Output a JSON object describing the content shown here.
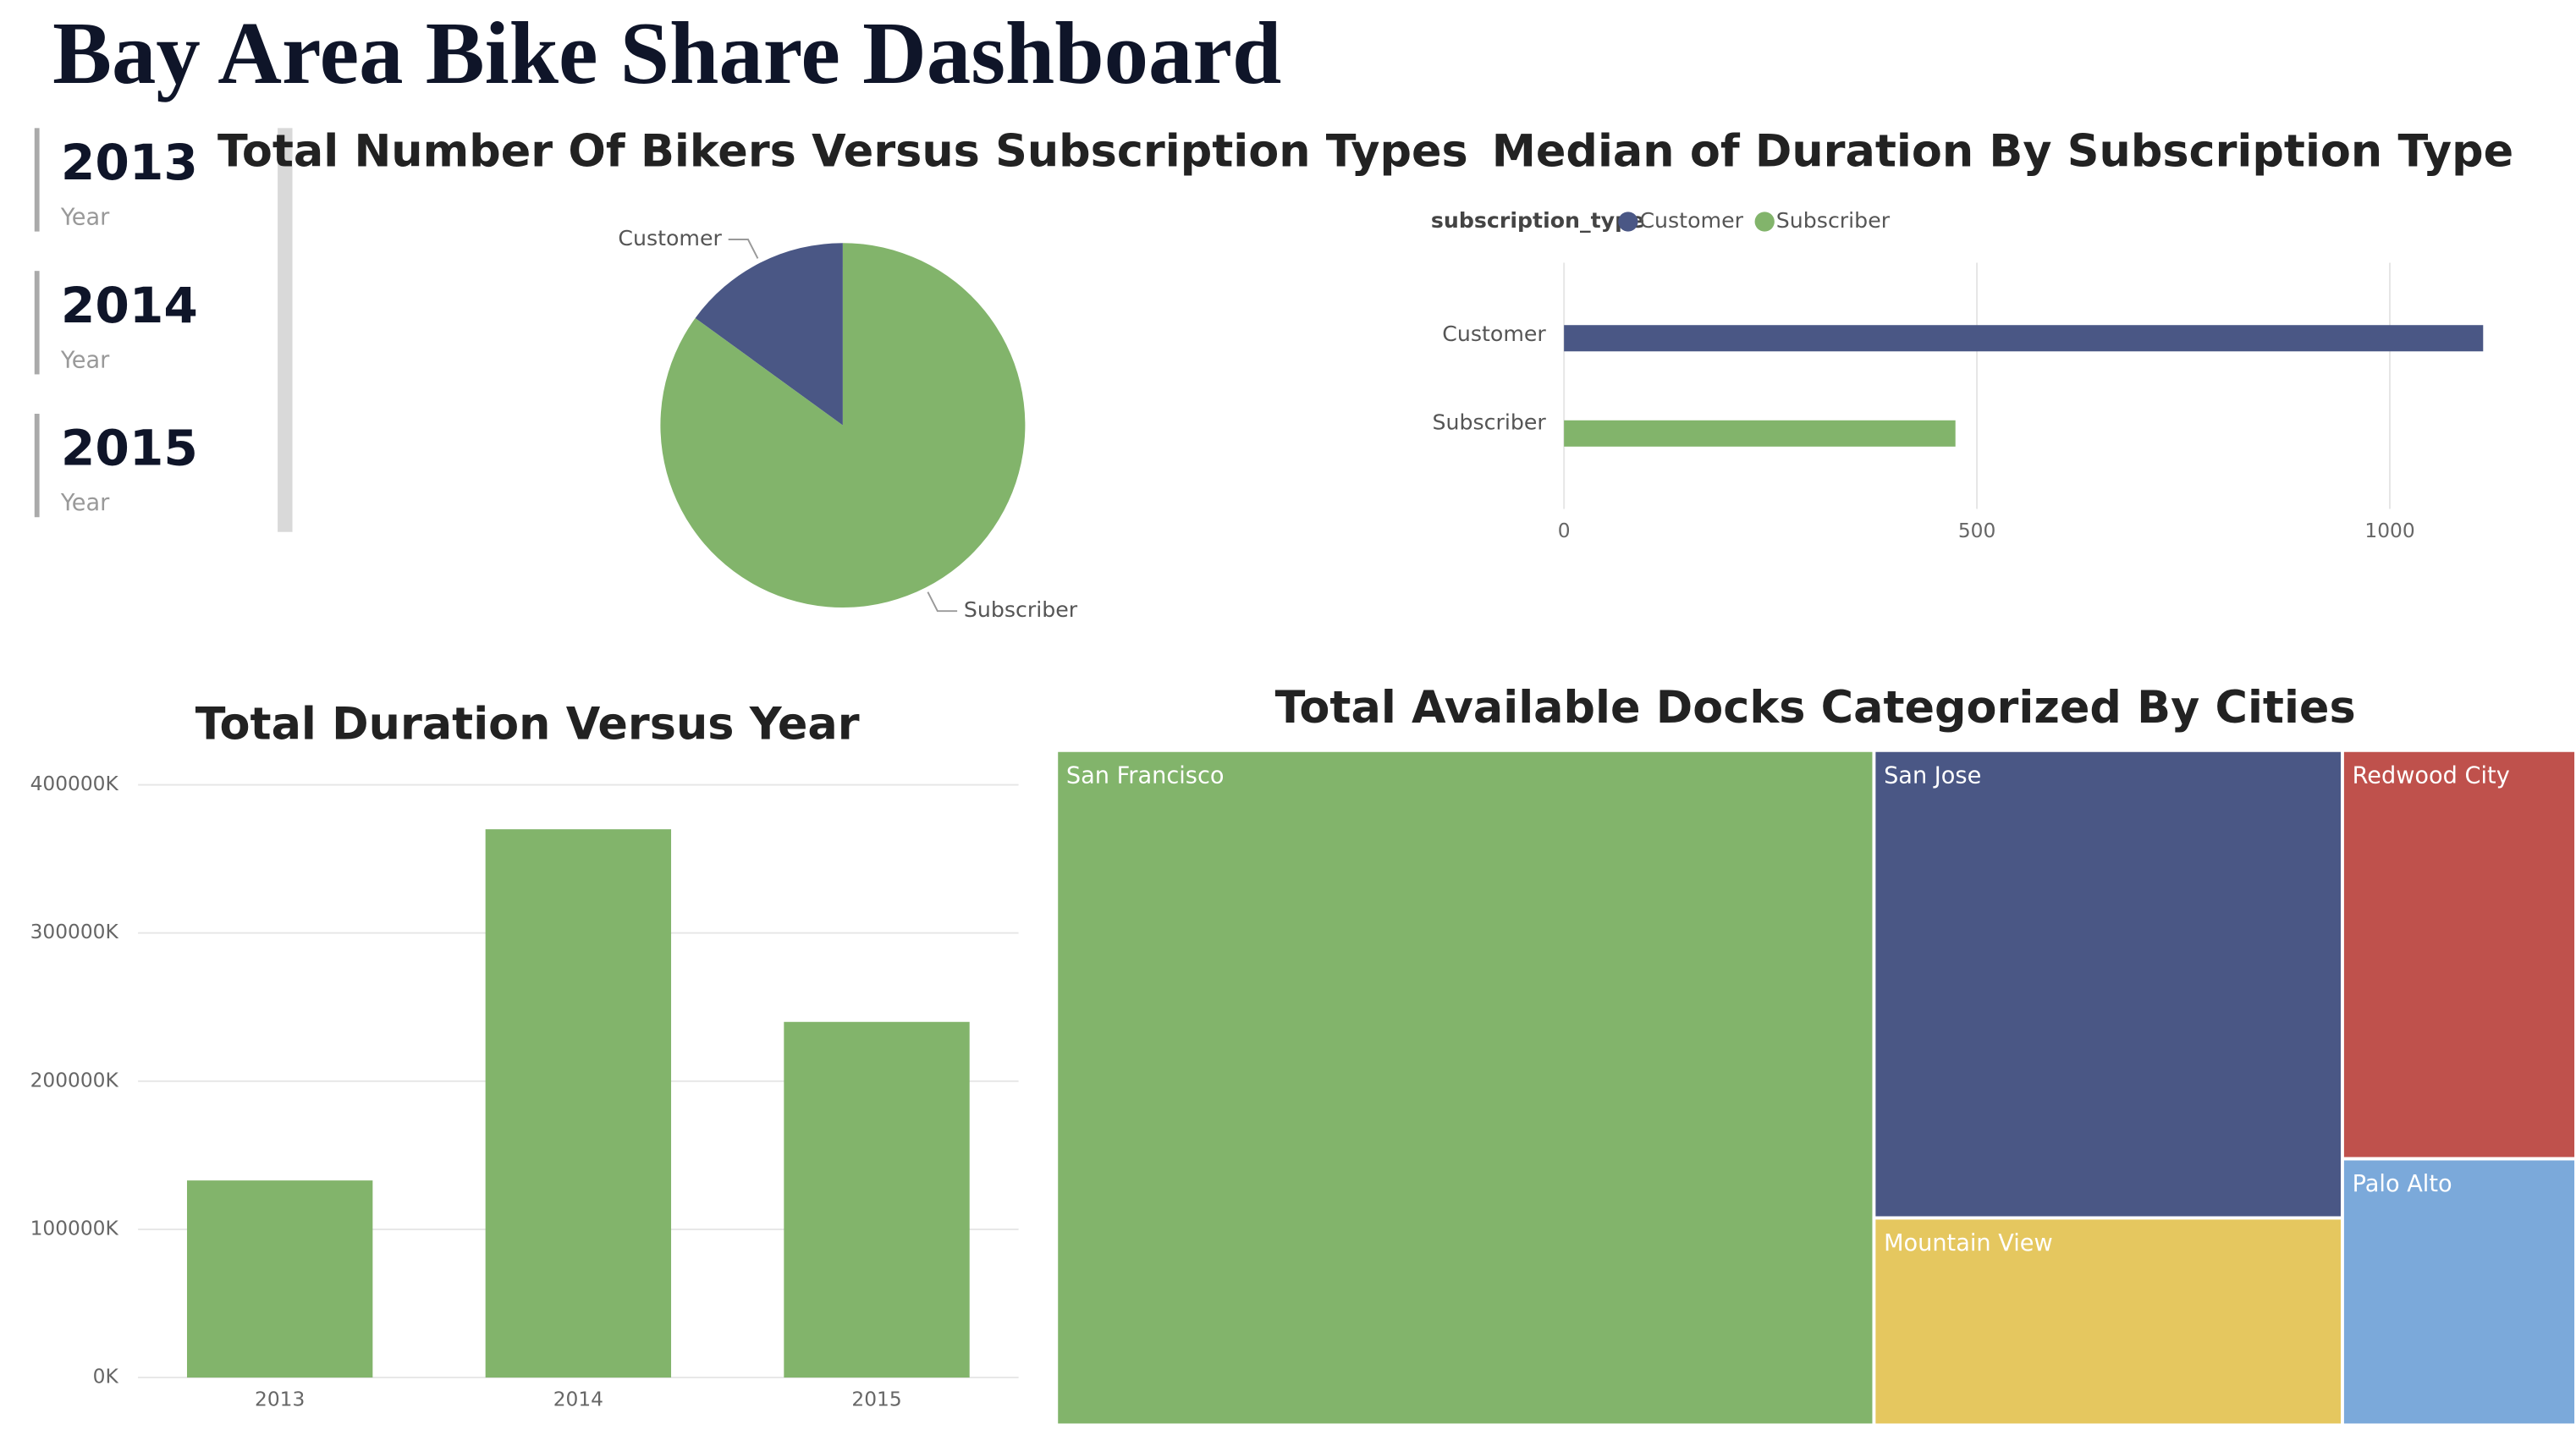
{
  "title": "Bay Area Bike Share Dashboard",
  "slicer": {
    "items": [
      {
        "year": "2013",
        "label": "Year"
      },
      {
        "year": "2014",
        "label": "Year"
      },
      {
        "year": "2015",
        "label": "Year"
      }
    ]
  },
  "chart_data": [
    {
      "type": "pie",
      "title": "Total Number Of Bikers Versus Subscription Types",
      "categories": [
        "Customer",
        "Subscriber"
      ],
      "values": [
        15,
        85
      ],
      "colors": [
        "#4a5785",
        "#82b46b"
      ]
    },
    {
      "type": "bar",
      "orientation": "horizontal",
      "title": "Median of Duration By Subscription Type",
      "legend_title": "subscription_type",
      "categories": [
        "Customer",
        "Subscriber"
      ],
      "series": [
        {
          "name": "Customer",
          "color": "#4a5785",
          "values": [
            1113,
            null
          ]
        },
        {
          "name": "Subscriber",
          "color": "#82b46b",
          "values": [
            null,
            474
          ]
        }
      ],
      "xlim": [
        0,
        1120
      ],
      "xticks": [
        0,
        500,
        1000
      ],
      "grid": true
    },
    {
      "type": "column",
      "title": "Total Duration Versus Year",
      "categories": [
        "2013",
        "2014",
        "2015"
      ],
      "values": [
        133000000,
        370000000,
        240000000
      ],
      "color": "#82b46b",
      "ylim": [
        0,
        400000000
      ],
      "yticks": [
        {
          "value": 0,
          "label": "0K"
        },
        {
          "value": 100000000,
          "label": "100000K"
        },
        {
          "value": 200000000,
          "label": "200000K"
        },
        {
          "value": 300000000,
          "label": "300000K"
        },
        {
          "value": 400000000,
          "label": "400000K"
        }
      ],
      "grid": true
    },
    {
      "type": "treemap",
      "title": "Total Available Docks  Categorized By Cities",
      "categories": [
        "San Francisco",
        "San Jose",
        "Mountain View",
        "Redwood City",
        "Palo Alto"
      ],
      "values": [
        665,
        264,
        117,
        115,
        75
      ],
      "colors": [
        "#82b46b",
        "#4a5785",
        "#e5c75f",
        "#bf514c",
        "#7ba9da"
      ]
    }
  ]
}
